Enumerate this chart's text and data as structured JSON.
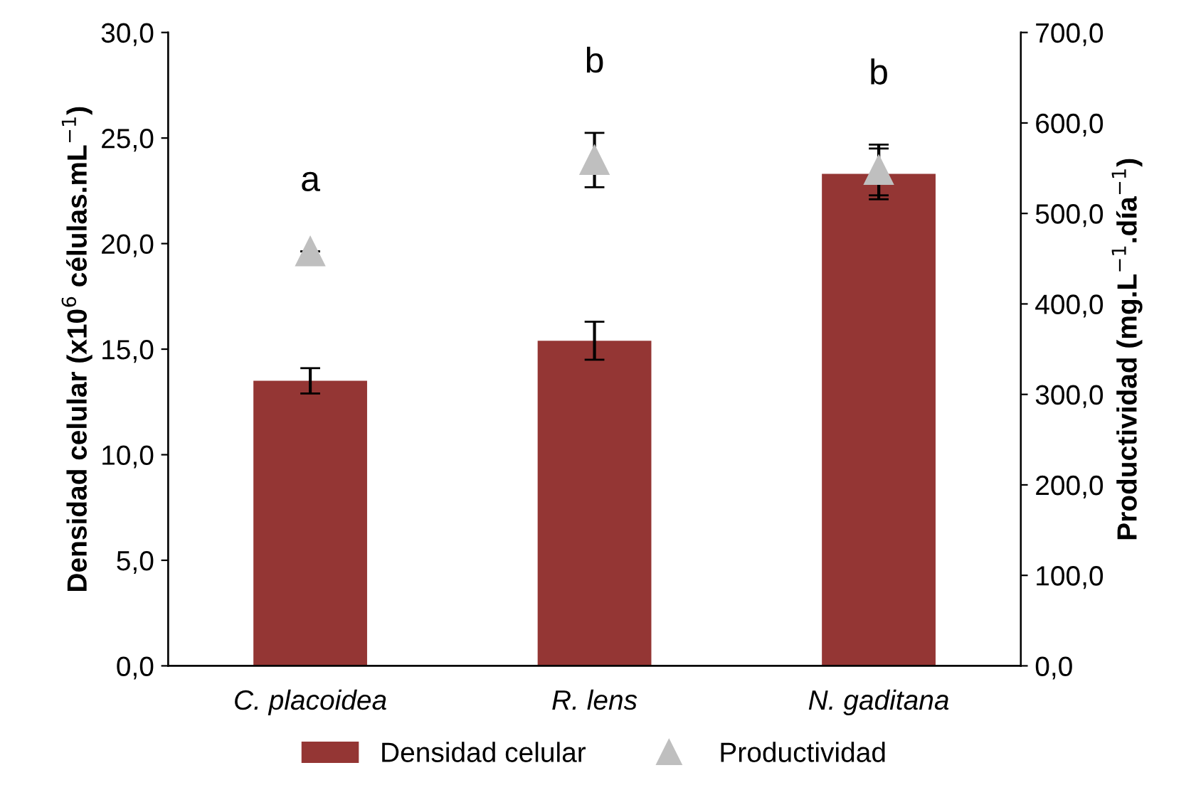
{
  "chart_data": {
    "type": "bar",
    "categories": [
      "C. placoidea",
      "R. lens",
      "N. gaditana"
    ],
    "ylabel": "Densidad celular (x10$^{6}$ células.mL$^{−1}$)",
    "y2label": "Productividad (mg.L$^{−1}$.día$^{−1}$)",
    "series": [
      {
        "name": "Densidad celular",
        "color": "#943634",
        "values": [
          13.5,
          15.4,
          23.3
        ],
        "errors": [
          0.6,
          0.9,
          1.2
        ]
      },
      {
        "name": "Productividad",
        "type": "scatter",
        "axis": "y2",
        "marker": "triangle",
        "color": "#bfbfbf",
        "values": [
          458,
          559,
          548
        ],
        "errors": [
          null,
          30,
          28
        ]
      }
    ],
    "annotations": [
      "a",
      "b",
      "b"
    ],
    "ylim": [
      0,
      30
    ],
    "yticks": [
      {
        "value": 0,
        "label": "0,0"
      },
      {
        "value": 5,
        "label": "5,0"
      },
      {
        "value": 10,
        "label": "10,0"
      },
      {
        "value": 15,
        "label": "15,0"
      },
      {
        "value": 20,
        "label": "20,0"
      },
      {
        "value": 25,
        "label": "25,0"
      },
      {
        "value": 30,
        "label": "30,0"
      }
    ],
    "y2lim": [
      0,
      700
    ],
    "y2ticks": [
      {
        "value": 0,
        "label": "0,0"
      },
      {
        "value": 100,
        "label": "100,0"
      },
      {
        "value": 200,
        "label": "200,0"
      },
      {
        "value": 300,
        "label": "300,0"
      },
      {
        "value": 400,
        "label": "400,0"
      },
      {
        "value": 500,
        "label": "500,0"
      },
      {
        "value": 600,
        "label": "600,0"
      },
      {
        "value": 700,
        "label": "700,0"
      }
    ],
    "legend": "bottom"
  }
}
